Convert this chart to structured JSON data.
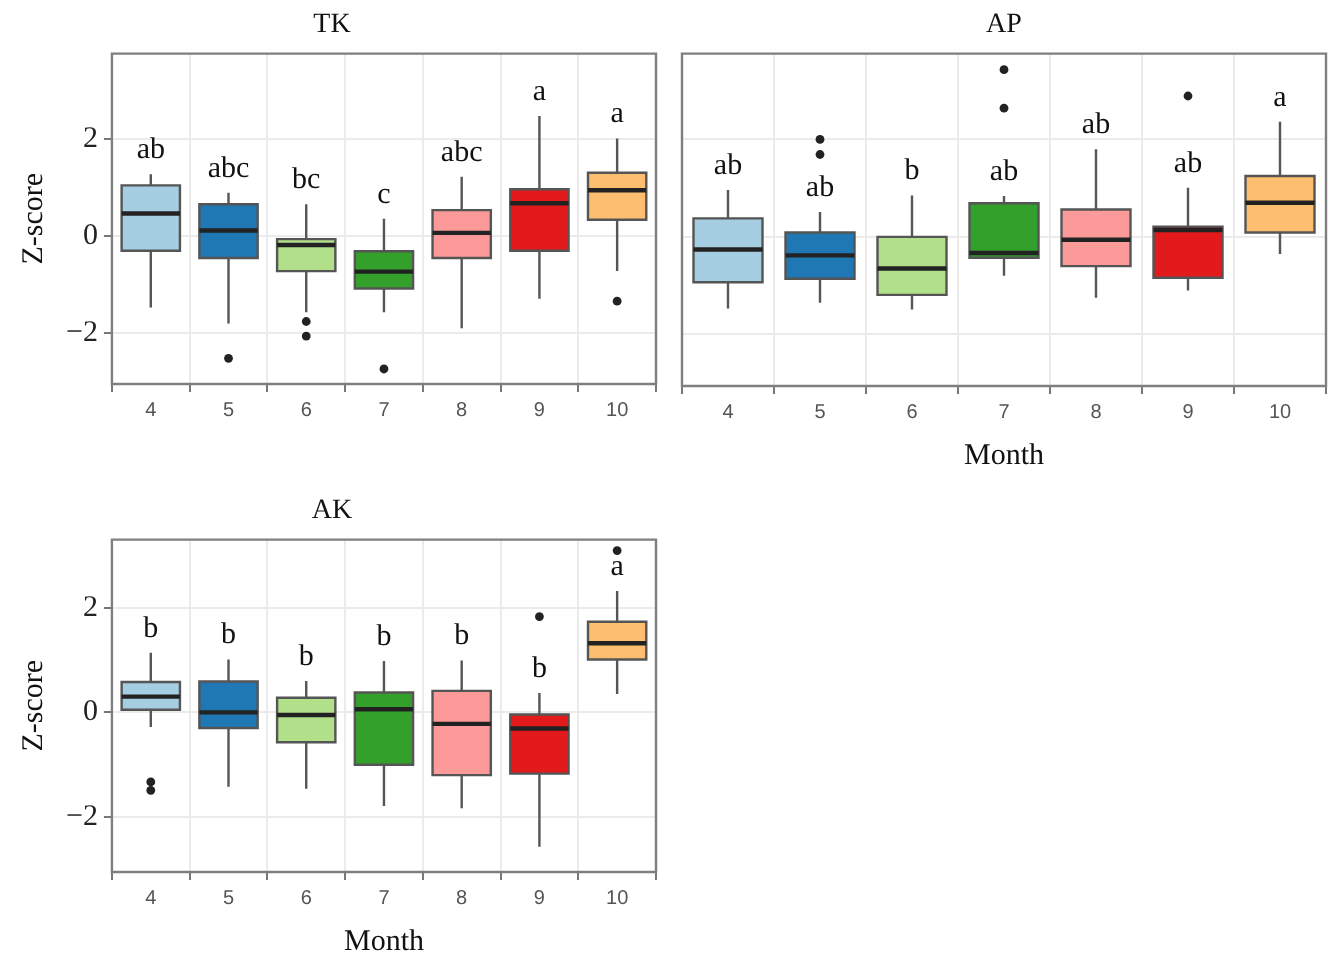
{
  "chart_data": [
    {
      "type": "box",
      "title": "TK",
      "ylabel": "Z-score",
      "categories": [
        "4",
        "5",
        "6",
        "7",
        "8",
        "9",
        "10"
      ],
      "colors": [
        "#a6cee3",
        "#1f78b4",
        "#b2df8a",
        "#33a02c",
        "#fb9a99",
        "#e31a1c",
        "#fdbf6f"
      ],
      "boxes": [
        {
          "low": -1.48,
          "q1": -0.31,
          "median": 0.46,
          "q3": 1.04,
          "high": 1.27
        },
        {
          "low": -1.81,
          "q1": -0.46,
          "median": 0.11,
          "q3": 0.65,
          "high": 0.89,
          "outliers": [
            -2.53
          ]
        },
        {
          "low": -1.58,
          "q1": -0.73,
          "median": -0.19,
          "q3": -0.07,
          "high": 0.65,
          "outliers": [
            -1.77,
            -2.07
          ]
        },
        {
          "low": -1.58,
          "q1": -1.09,
          "median": -0.74,
          "q3": -0.32,
          "high": 0.35,
          "outliers": [
            -2.75
          ]
        },
        {
          "low": -1.91,
          "q1": -0.46,
          "median": 0.06,
          "q3": 0.53,
          "high": 1.22
        },
        {
          "low": -1.3,
          "q1": -0.31,
          "median": 0.67,
          "q3": 0.96,
          "high": 2.47
        },
        {
          "low": -0.73,
          "q1": 0.33,
          "median": 0.94,
          "q3": 1.3,
          "high": 2.01,
          "outliers": [
            -1.35
          ]
        }
      ],
      "annotations": [
        "ab",
        "abc",
        "bc",
        "c",
        "abc",
        "a",
        "a"
      ],
      "ylim": [
        -3.06,
        3.76
      ],
      "yticks": [
        -2,
        0,
        2
      ],
      "grid": true
    },
    {
      "type": "box",
      "title": "AP",
      "xlabel": "Month",
      "categories": [
        "4",
        "5",
        "6",
        "7",
        "8",
        "9",
        "10"
      ],
      "colors": [
        "#a6cee3",
        "#1f78b4",
        "#b2df8a",
        "#33a02c",
        "#fb9a99",
        "#e31a1c",
        "#fdbf6f"
      ],
      "boxes": [
        {
          "low": -1.47,
          "q1": -0.93,
          "median": -0.26,
          "q3": 0.38,
          "high": 0.96
        },
        {
          "low": -1.35,
          "q1": -0.86,
          "median": -0.38,
          "q3": 0.09,
          "high": 0.51,
          "outliers": [
            2.0,
            1.69
          ]
        },
        {
          "low": -1.49,
          "q1": -1.19,
          "median": -0.65,
          "q3": 0.0,
          "high": 0.85
        },
        {
          "low": -0.8,
          "q1": -0.43,
          "median": -0.33,
          "q3": 0.69,
          "high": 0.84,
          "outliers": [
            2.64,
            3.43
          ]
        },
        {
          "low": -1.25,
          "q1": -0.6,
          "median": -0.06,
          "q3": 0.56,
          "high": 1.8
        },
        {
          "low": -1.1,
          "q1": -0.84,
          "median": 0.14,
          "q3": 0.21,
          "high": 1.01,
          "outliers": [
            2.89
          ]
        },
        {
          "low": -0.35,
          "q1": 0.09,
          "median": 0.7,
          "q3": 1.25,
          "high": 2.36
        }
      ],
      "annotations": [
        "ab",
        "ab",
        "b",
        "ab",
        "ab",
        "ab",
        "a"
      ],
      "ylim": [
        -3.06,
        3.76
      ],
      "yticks": [
        -2,
        0,
        2
      ],
      "grid": true,
      "tick_labels": "x"
    },
    {
      "type": "box",
      "title": "AK",
      "xlabel": "Month",
      "ylabel": "Z-score",
      "categories": [
        "4",
        "5",
        "6",
        "7",
        "8",
        "9",
        "10"
      ],
      "colors": [
        "#a6cee3",
        "#1f78b4",
        "#b2df8a",
        "#33a02c",
        "#fb9a99",
        "#e31a1c",
        "#fdbf6f"
      ],
      "boxes": [
        {
          "low": -0.28,
          "q1": 0.05,
          "median": 0.3,
          "q3": 0.58,
          "high": 1.14,
          "outliers": [
            -1.33,
            -1.49
          ]
        },
        {
          "low": -1.42,
          "q1": -0.3,
          "median": 0.0,
          "q3": 0.59,
          "high": 1.01
        },
        {
          "low": -1.46,
          "q1": -0.57,
          "median": -0.05,
          "q3": 0.28,
          "high": 0.6
        },
        {
          "low": -1.79,
          "q1": -1.0,
          "median": 0.06,
          "q3": 0.38,
          "high": 0.98
        },
        {
          "low": -1.83,
          "q1": -1.2,
          "median": -0.22,
          "q3": 0.41,
          "high": 0.99
        },
        {
          "low": -2.57,
          "q1": -1.17,
          "median": -0.31,
          "q3": -0.04,
          "high": 0.37,
          "outliers": [
            1.83
          ]
        },
        {
          "low": 0.35,
          "q1": 1.01,
          "median": 1.32,
          "q3": 1.73,
          "high": 2.32,
          "outliers": [
            3.09
          ]
        }
      ],
      "annotations": [
        "b",
        "b",
        "b",
        "b",
        "b",
        "b",
        "a"
      ],
      "ylim": [
        -3.05,
        3.3
      ],
      "yticks": [
        -2,
        0,
        2
      ],
      "grid": true
    }
  ]
}
